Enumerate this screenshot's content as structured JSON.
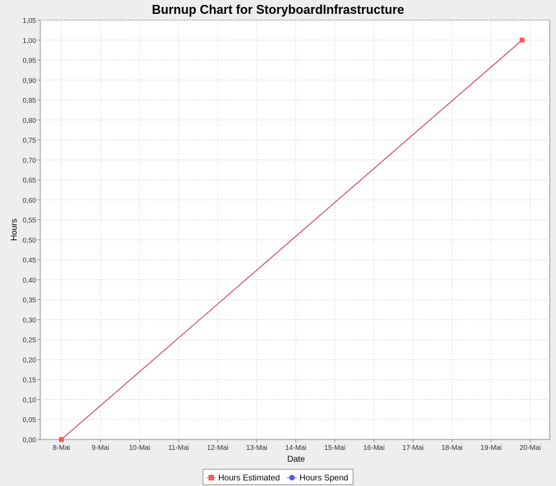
{
  "chart_data": {
    "type": "line",
    "title": "Burnup Chart for StoryboardInfrastructure",
    "xlabel": "Date",
    "ylabel": "Hours",
    "categories": [
      "8-Mai",
      "9-Mai",
      "10-Mai",
      "11-Mai",
      "12-Mai",
      "13-Mai",
      "14-Mai",
      "15-Mai",
      "16-Mai",
      "17-Mai",
      "18-Mai",
      "19-Mai",
      "20-Mai"
    ],
    "x_range": [
      "7-Mai",
      "20-Mai"
    ],
    "ylim": [
      0,
      1.05
    ],
    "yticks": [
      "0,00",
      "0,05",
      "0,10",
      "0,15",
      "0,20",
      "0,25",
      "0,30",
      "0,35",
      "0,40",
      "0,45",
      "0,50",
      "0,55",
      "0,60",
      "0,65",
      "0,70",
      "0,75",
      "0,80",
      "0,85",
      "0,90",
      "0,95",
      "1,00",
      "1,05"
    ],
    "grid": true,
    "legend_position": "bottom-center",
    "series": [
      {
        "name": "Hours Estimated",
        "color": "#ff5555",
        "line_color": "#cc3355",
        "marker": "square",
        "points": [
          {
            "x": "8-Mai",
            "y": 0.0
          },
          {
            "x": "19-Mai 19:00",
            "y": 1.0
          }
        ]
      },
      {
        "name": "Hours Spend",
        "color": "#5555ff",
        "marker": "circle",
        "points": []
      }
    ]
  }
}
